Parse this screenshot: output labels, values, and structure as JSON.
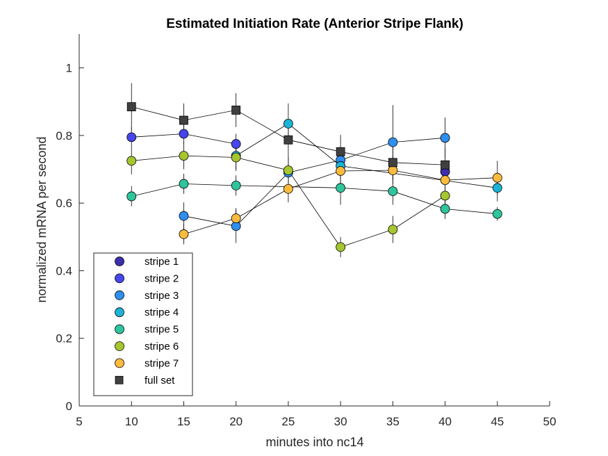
{
  "chart_data": {
    "type": "scatter",
    "title": "Estimated Initiation Rate (Anterior Stripe Flank)",
    "xlabel": "minutes into nc14",
    "ylabel": "normalized mRNA per second",
    "xlim": [
      5,
      50
    ],
    "ylim": [
      0,
      1.1
    ],
    "xticks": [
      5,
      10,
      15,
      20,
      25,
      30,
      35,
      40,
      45,
      50
    ],
    "yticks": [
      0,
      0.2,
      0.4,
      0.6,
      0.8,
      1
    ],
    "xtick_labels": [
      "5",
      "10",
      "15",
      "20",
      "25",
      "30",
      "35",
      "40",
      "45",
      "50"
    ],
    "ytick_labels": [
      "0",
      "0.2",
      "0.4",
      "0.6",
      "0.8",
      "1"
    ],
    "grid": false,
    "legend_position": "bottom-left",
    "series": [
      {
        "name": "stripe 1",
        "color": "#3b2fae",
        "marker": "circle",
        "x": [
          40
        ],
        "y": [
          0.693
        ],
        "err": [
          0.03
        ]
      },
      {
        "name": "stripe 2",
        "color": "#4646ec",
        "marker": "circle",
        "x": [
          10,
          15,
          20
        ],
        "y": [
          0.795,
          0.805,
          0.775
        ],
        "err": [
          0.03,
          0.03,
          0.03
        ]
      },
      {
        "name": "stripe 3",
        "color": "#2f8fef",
        "marker": "circle",
        "x": [
          15,
          20,
          25,
          30,
          35,
          40
        ],
        "y": [
          0.562,
          0.532,
          0.69,
          0.727,
          0.78,
          0.793
        ],
        "err": [
          0.04,
          0.05,
          0.04,
          0.04,
          0.11,
          0.06
        ]
      },
      {
        "name": "stripe 4",
        "color": "#1db3d6",
        "marker": "circle",
        "x": [
          20,
          25,
          30,
          45
        ],
        "y": [
          0.74,
          0.835,
          0.71,
          0.645
        ],
        "err": [
          0.04,
          0.06,
          0.04,
          0.04
        ]
      },
      {
        "name": "stripe 5",
        "color": "#2fc59c",
        "marker": "circle",
        "x": [
          10,
          15,
          20,
          30,
          35,
          40,
          45
        ],
        "y": [
          0.62,
          0.657,
          0.652,
          0.645,
          0.635,
          0.583,
          0.568
        ],
        "err": [
          0.03,
          0.03,
          0.03,
          0.05,
          0.04,
          0.03,
          0.02
        ]
      },
      {
        "name": "stripe 6",
        "color": "#a5c62f",
        "marker": "circle",
        "x": [
          10,
          15,
          20,
          25,
          30,
          35,
          40
        ],
        "y": [
          0.725,
          0.74,
          0.735,
          0.697,
          0.47,
          0.522,
          0.622
        ],
        "err": [
          0.04,
          0.04,
          0.04,
          0.04,
          0.03,
          0.04,
          0.03
        ]
      },
      {
        "name": "stripe 7",
        "color": "#fcbb3d",
        "marker": "circle",
        "x": [
          15,
          20,
          25,
          30,
          35,
          40,
          45
        ],
        "y": [
          0.508,
          0.555,
          0.642,
          0.695,
          0.697,
          0.668,
          0.675
        ],
        "err": [
          0.03,
          0.03,
          0.04,
          0.04,
          0.04,
          0.04,
          0.05
        ]
      },
      {
        "name": "full set",
        "color": "#404040",
        "marker": "square",
        "x": [
          10,
          15,
          20,
          25,
          30,
          35,
          40
        ],
        "y": [
          0.885,
          0.845,
          0.875,
          0.787,
          0.752,
          0.72,
          0.713
        ],
        "err": [
          0.07,
          0.05,
          0.05,
          0.06,
          0.05,
          0.05,
          0.05
        ]
      }
    ]
  }
}
